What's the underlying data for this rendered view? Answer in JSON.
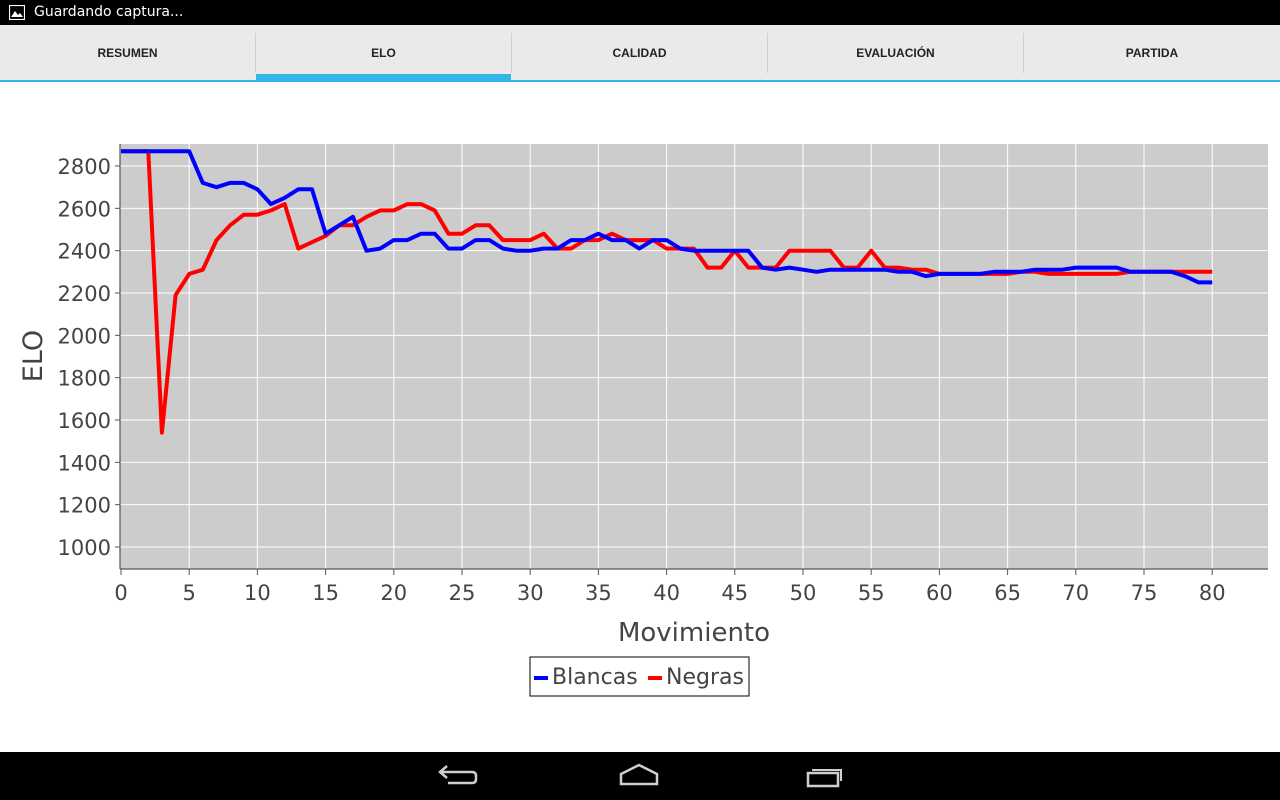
{
  "status_bar": {
    "text": "Guardando captura..."
  },
  "tabs": [
    {
      "label": "RESUMEN",
      "selected": false
    },
    {
      "label": "ELO",
      "selected": true
    },
    {
      "label": "CALIDAD",
      "selected": false
    },
    {
      "label": "EVALUACIÓN",
      "selected": false
    },
    {
      "label": "PARTIDA",
      "selected": false
    }
  ],
  "colors": {
    "accent": "#33b5e5",
    "plot_background": "#cccccc",
    "blancas": "#0000ff",
    "negras": "#ff0000"
  },
  "nav_bar": {
    "icons": [
      "back-icon",
      "home-icon",
      "recent-apps-icon"
    ]
  },
  "chart_data": {
    "type": "line",
    "title": "",
    "xlabel": "Movimiento",
    "ylabel": "ELO",
    "xlim": [
      0,
      84
    ],
    "ylim": [
      900,
      2900
    ],
    "xticks": [
      0,
      5,
      10,
      15,
      20,
      25,
      30,
      35,
      40,
      45,
      50,
      55,
      60,
      65,
      70,
      75,
      80
    ],
    "yticks": [
      1000,
      1200,
      1400,
      1600,
      1800,
      2000,
      2200,
      2400,
      2600,
      2800
    ],
    "grid": true,
    "legend_position": "bottom-center",
    "series": [
      {
        "name": "Blancas",
        "color": "#0000ff",
        "x": [
          0,
          1,
          2,
          3,
          4,
          5,
          6,
          7,
          8,
          9,
          10,
          11,
          12,
          13,
          14,
          15,
          16,
          17,
          18,
          19,
          20,
          21,
          22,
          23,
          24,
          25,
          26,
          27,
          28,
          29,
          30,
          31,
          32,
          33,
          34,
          35,
          36,
          37,
          38,
          39,
          40,
          41,
          42,
          43,
          44,
          45,
          46,
          47,
          48,
          49,
          50,
          51,
          52,
          53,
          54,
          55,
          56,
          57,
          58,
          59,
          60,
          61,
          62,
          63,
          64,
          65,
          66,
          67,
          68,
          69,
          70,
          71,
          72,
          73,
          74,
          75,
          76,
          77,
          78,
          79,
          80
        ],
        "y": [
          2870,
          2870,
          2870,
          2870,
          2870,
          2870,
          2720,
          2700,
          2720,
          2720,
          2690,
          2620,
          2650,
          2690,
          2690,
          2480,
          2520,
          2560,
          2400,
          2410,
          2450,
          2450,
          2480,
          2480,
          2410,
          2410,
          2450,
          2450,
          2410,
          2400,
          2400,
          2410,
          2410,
          2450,
          2450,
          2480,
          2450,
          2450,
          2410,
          2450,
          2450,
          2410,
          2400,
          2400,
          2400,
          2400,
          2400,
          2320,
          2310,
          2320,
          2310,
          2300,
          2310,
          2310,
          2310,
          2310,
          2310,
          2300,
          2300,
          2280,
          2290,
          2290,
          2290,
          2290,
          2300,
          2300,
          2300,
          2310,
          2310,
          2310,
          2320,
          2320,
          2320,
          2320,
          2300,
          2300,
          2300,
          2300,
          2280,
          2250,
          2250
        ]
      },
      {
        "name": "Negras",
        "color": "#ff0000",
        "x": [
          0,
          1,
          2,
          3,
          4,
          5,
          6,
          7,
          8,
          9,
          10,
          11,
          12,
          13,
          14,
          15,
          16,
          17,
          18,
          19,
          20,
          21,
          22,
          23,
          24,
          25,
          26,
          27,
          28,
          29,
          30,
          31,
          32,
          33,
          34,
          35,
          36,
          37,
          38,
          39,
          40,
          41,
          42,
          43,
          44,
          45,
          46,
          47,
          48,
          49,
          50,
          51,
          52,
          53,
          54,
          55,
          56,
          57,
          58,
          59,
          60,
          61,
          62,
          63,
          64,
          65,
          66,
          67,
          68,
          69,
          70,
          71,
          72,
          73,
          74,
          75,
          76,
          77,
          78,
          79,
          80
        ],
        "y": [
          2870,
          2870,
          2870,
          1540,
          2190,
          2290,
          2310,
          2450,
          2520,
          2570,
          2570,
          2590,
          2620,
          2410,
          2440,
          2470,
          2520,
          2520,
          2560,
          2590,
          2590,
          2620,
          2620,
          2590,
          2480,
          2480,
          2520,
          2520,
          2450,
          2450,
          2450,
          2480,
          2410,
          2410,
          2450,
          2450,
          2480,
          2450,
          2450,
          2450,
          2410,
          2410,
          2410,
          2320,
          2320,
          2400,
          2320,
          2320,
          2320,
          2400,
          2400,
          2400,
          2400,
          2320,
          2320,
          2400,
          2320,
          2320,
          2310,
          2310,
          2290,
          2290,
          2290,
          2290,
          2290,
          2290,
          2300,
          2300,
          2290,
          2290,
          2290,
          2290,
          2290,
          2290,
          2300,
          2300,
          2300,
          2300,
          2300,
          2300,
          2300
        ]
      }
    ]
  }
}
